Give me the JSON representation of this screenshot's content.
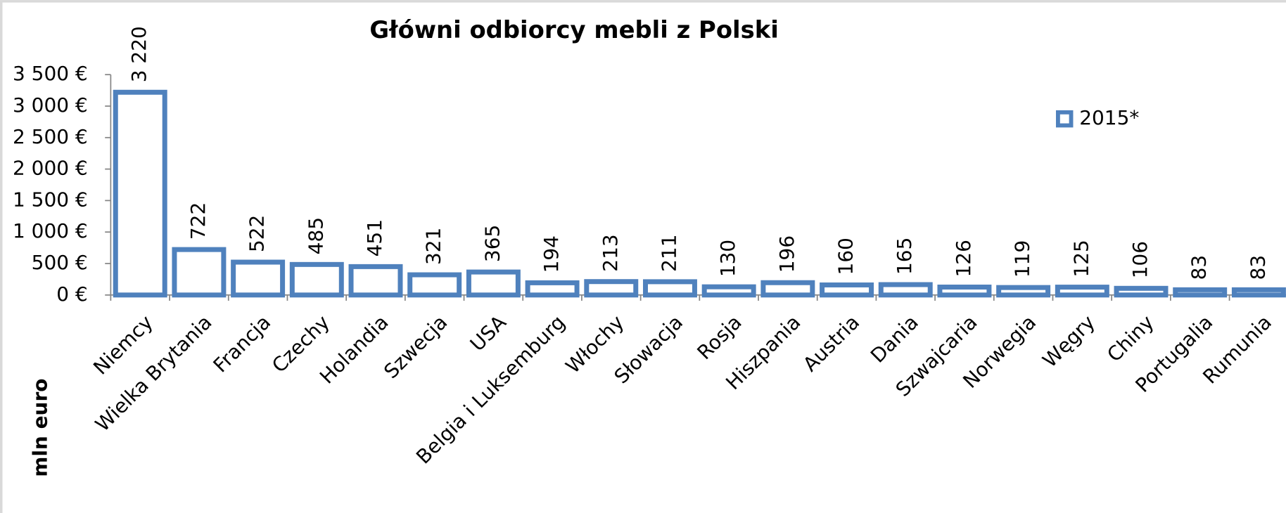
{
  "chart_data": {
    "type": "bar",
    "title": "Główni odbiorcy mebli z Polski",
    "y_label": "mln euro",
    "categories": [
      "Niemcy",
      "Wielka Brytania",
      "Francja",
      "Czechy",
      "Holandia",
      "Szwecja",
      "USA",
      "Belgia i Luksemburg",
      "Włochy",
      "Słowacja",
      "Rosja",
      "Hiszpania",
      "Austria",
      "Dania",
      "Szwajcaria",
      "Norwegia",
      "Węgry",
      "Chiny",
      "Portugalia",
      "Rumunia"
    ],
    "series": [
      {
        "name": "2015*",
        "color": "#4f81bd",
        "values": [
          3220,
          722,
          522,
          485,
          451,
          321,
          365,
          194,
          213,
          211,
          130,
          196,
          160,
          165,
          126,
          119,
          125,
          106,
          83,
          83
        ],
        "value_labels": [
          "3 220",
          "722",
          "522",
          "485",
          "451",
          "321",
          "365",
          "194",
          "213",
          "211",
          "130",
          "196",
          "160",
          "165",
          "126",
          "119",
          "125",
          "106",
          "83",
          "83"
        ]
      }
    ],
    "ylim": [
      0,
      3500
    ],
    "yticks": [
      {
        "value": 0,
        "label": "0 €"
      },
      {
        "value": 500,
        "label": "500 €"
      },
      {
        "value": 1000,
        "label": "1 000 €"
      },
      {
        "value": 1500,
        "label": "1 500 €"
      },
      {
        "value": 2000,
        "label": "2 000 €"
      },
      {
        "value": 2500,
        "label": "2 500 €"
      },
      {
        "value": 3000,
        "label": "3 000 €"
      },
      {
        "value": 3500,
        "label": "3 500 €"
      }
    ],
    "legend": "upper right"
  }
}
